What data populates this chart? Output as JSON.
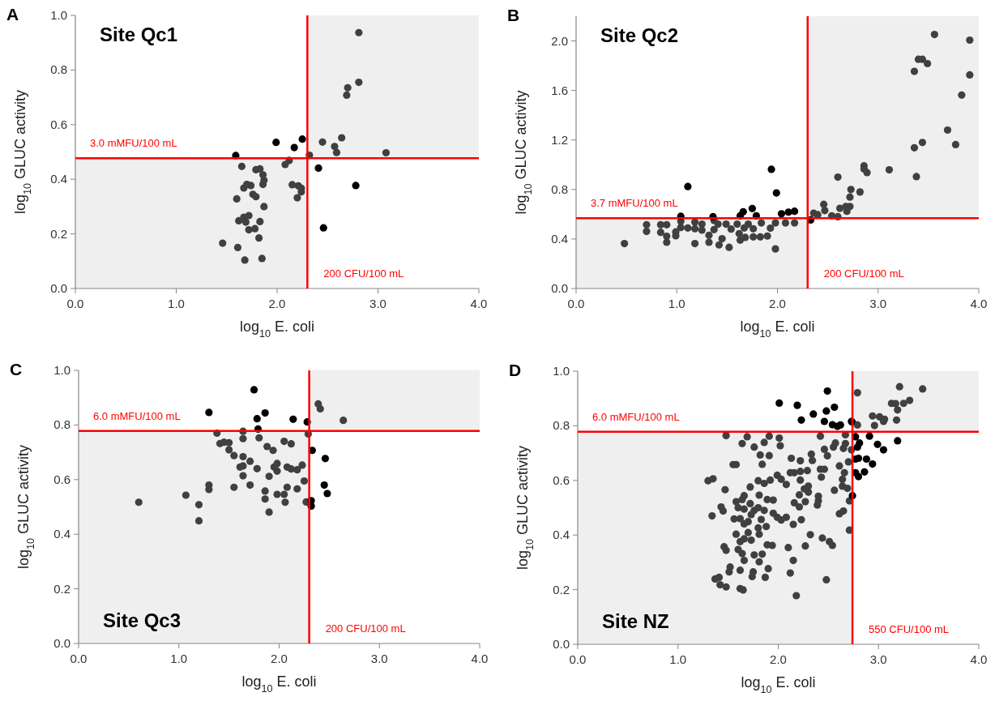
{
  "chart_data": [
    {
      "type": "scatter",
      "title": "A",
      "annotations": [
        "Site Qc1"
      ],
      "xlabel": "log$_{10}$ E. coli",
      "ylabel": "log$_{10}$ GLUC activity",
      "marker": "circle",
      "grid": false,
      "xlim": [
        0,
        4
      ],
      "xticks": [
        {
          "value": 0,
          "label": "0.0"
        },
        {
          "value": 1,
          "label": "1.0"
        },
        {
          "value": 2,
          "label": "2.0"
        },
        {
          "value": 3,
          "label": "3.0"
        },
        {
          "value": 4,
          "label": "4.0"
        }
      ],
      "ylim": [
        0,
        1
      ],
      "yticks": [
        {
          "value": 0,
          "label": "0.0"
        },
        0.2,
        0.4,
        0.6,
        0.8,
        {
          "value": 1,
          "label": "1.0"
        }
      ],
      "ref_lines": [
        {
          "axis": "y",
          "value": 0.477,
          "label": "3.0 mMFU/100 mL",
          "color": "#ff0000"
        },
        {
          "axis": "x",
          "value": 2.3,
          "label": "200 CFU/100 mL",
          "color": "#ff0000"
        }
      ],
      "bands": [
        {
          "axis": "x",
          "from": 0,
          "to": 2.3,
          "color": "#efefef"
        },
        {
          "axis": "x",
          "from": 2.3,
          "to": 4,
          "color": "#efefef"
        }
      ],
      "series": [
        {
          "color": "#404040",
          "x": [
            2.81,
            2.81,
            2.7,
            2.69,
            2.64,
            2.45,
            2.57,
            2.59,
            3.08,
            2.32,
            2.12,
            2.08,
            1.65,
            1.83,
            1.79,
            1.86,
            1.87,
            1.86,
            1.74,
            1.7,
            1.67,
            2.15,
            2.21,
            2.24,
            2.24,
            2.2,
            1.76,
            1.79,
            1.6,
            1.87,
            1.72,
            1.67,
            1.62,
            1.69,
            1.83,
            1.72,
            1.78,
            1.82,
            1.46,
            1.61,
            1.68,
            1.85
          ],
          "values": [
            0.937,
            0.755,
            0.735,
            0.708,
            0.552,
            0.536,
            0.52,
            0.498,
            0.497,
            0.488,
            0.469,
            0.454,
            0.447,
            0.438,
            0.435,
            0.416,
            0.396,
            0.381,
            0.377,
            0.381,
            0.368,
            0.38,
            0.376,
            0.367,
            0.354,
            0.332,
            0.345,
            0.336,
            0.328,
            0.3,
            0.267,
            0.261,
            0.248,
            0.243,
            0.245,
            0.215,
            0.219,
            0.185,
            0.166,
            0.15,
            0.104,
            0.11
          ]
        },
        {
          "color": "#000000",
          "x": [
            1.59,
            1.99,
            2.17,
            2.25,
            2.41,
            2.78,
            2.46
          ],
          "values": [
            0.487,
            0.535,
            0.516,
            0.547,
            0.441,
            0.377,
            0.222
          ]
        }
      ]
    },
    {
      "type": "scatter",
      "title": "B",
      "annotations": [
        "Site Qc2"
      ],
      "xlabel": "log$_{10}$ E. coli",
      "ylabel": "log$_{10}$ GLUC activity",
      "marker": "circle",
      "grid": false,
      "xlim": [
        0,
        4
      ],
      "xticks": [
        {
          "value": 0,
          "label": "0.0"
        },
        {
          "value": 1,
          "label": "1.0"
        },
        {
          "value": 2,
          "label": "2.0"
        },
        {
          "value": 3,
          "label": "3.0"
        },
        {
          "value": 4,
          "label": "4.0"
        }
      ],
      "ylim": [
        0,
        2.2
      ],
      "yticks": [
        {
          "value": 0,
          "label": "0.0"
        },
        0.4,
        0.8,
        1.2,
        1.6,
        {
          "value": 2,
          "label": "2.0"
        }
      ],
      "ref_lines": [
        {
          "axis": "y",
          "value": 0.568,
          "label": "3.7 mMFU/100 mL",
          "color": "#ff0000"
        },
        {
          "axis": "x",
          "value": 2.3,
          "label": "200 CFU/100 mL",
          "color": "#ff0000"
        }
      ],
      "bands": [
        {
          "axis": "x",
          "from": 0,
          "to": 2.3,
          "color": "#efefef"
        },
        {
          "axis": "x",
          "from": 2.3,
          "to": 4,
          "color": "#efefef"
        }
      ],
      "series": [
        {
          "color": "#404040",
          "x": [
            0.48,
            0.7,
            0.7,
            0.84,
            0.9,
            0.84,
            0.9,
            0.9,
            0.99,
            0.99,
            1.04,
            1.04,
            1.11,
            1.18,
            1.18,
            1.18,
            1.25,
            1.25,
            1.32,
            1.32,
            1.37,
            1.37,
            1.41,
            1.42,
            1.45,
            1.49,
            1.52,
            1.54,
            1.6,
            1.62,
            1.63,
            1.67,
            1.68,
            1.71,
            1.76,
            1.76,
            1.84,
            1.83,
            1.9,
            1.93,
            1.98,
            1.98,
            2.08,
            2.17,
            2.36,
            2.4,
            2.46,
            2.47,
            2.54,
            2.6,
            2.62,
            2.68,
            2.69,
            2.72,
            2.72,
            2.73,
            2.82,
            2.6,
            2.86,
            2.86,
            2.89,
            3.11,
            3.38,
            3.36,
            3.44,
            3.69,
            3.77,
            3.36,
            3.4,
            3.44,
            3.49,
            3.56,
            3.91,
            3.91,
            3.83
          ],
          "values": [
            0.363,
            0.515,
            0.461,
            0.515,
            0.515,
            0.454,
            0.422,
            0.374,
            0.457,
            0.426,
            0.543,
            0.493,
            0.489,
            0.537,
            0.483,
            0.363,
            0.52,
            0.472,
            0.43,
            0.374,
            0.55,
            0.476,
            0.52,
            0.352,
            0.402,
            0.52,
            0.333,
            0.48,
            0.52,
            0.443,
            0.391,
            0.489,
            0.413,
            0.52,
            0.417,
            0.483,
            0.53,
            0.417,
            0.424,
            0.487,
            0.53,
            0.32,
            0.53,
            0.53,
            0.609,
            0.596,
            0.68,
            0.63,
            0.587,
            0.58,
            0.648,
            0.663,
            0.624,
            0.663,
            0.739,
            0.8,
            0.78,
            0.9,
            0.991,
            0.965,
            0.937,
            0.959,
            0.904,
            1.137,
            1.18,
            1.28,
            1.163,
            1.754,
            1.852,
            1.852,
            1.817,
            2.052,
            2.007,
            1.726,
            1.563
          ]
        },
        {
          "color": "#000000",
          "x": [
            1.11,
            1.94,
            1.99,
            1.75,
            1.66,
            2.04,
            2.11,
            2.17,
            1.79,
            1.04,
            1.36,
            2.33,
            1.63
          ],
          "values": [
            0.824,
            0.963,
            0.772,
            0.646,
            0.62,
            0.604,
            0.617,
            0.624,
            0.587,
            0.583,
            0.58,
            0.554,
            0.587
          ]
        }
      ]
    },
    {
      "type": "scatter",
      "title": "C",
      "annotations": [
        "Site Qc3"
      ],
      "xlabel": "log$_{10}$ E. coli",
      "ylabel": "log$_{10}$ GLUC activity",
      "marker": "circle",
      "grid": false,
      "xlim": [
        0,
        4
      ],
      "xticks": [
        {
          "value": 0,
          "label": "0.0"
        },
        {
          "value": 1,
          "label": "1.0"
        },
        {
          "value": 2,
          "label": "2.0"
        },
        {
          "value": 3,
          "label": "3.0"
        },
        {
          "value": 4,
          "label": "4.0"
        }
      ],
      "ylim": [
        0,
        1
      ],
      "yticks": [
        {
          "value": 0,
          "label": "0.0"
        },
        0.2,
        0.4,
        0.6,
        0.8,
        {
          "value": 1,
          "label": "1.0"
        }
      ],
      "ref_lines": [
        {
          "axis": "y",
          "value": 0.778,
          "label": "6.0 mMFU/100 mL",
          "color": "#ff0000"
        },
        {
          "axis": "x",
          "value": 2.3,
          "label": "200 CFU/100 mL",
          "color": "#ff0000"
        }
      ],
      "bands": [
        {
          "axis": "x",
          "from": 0,
          "to": 2.3,
          "color": "#efefef"
        },
        {
          "axis": "x",
          "from": 2.3,
          "to": 4,
          "color": "#efefef"
        }
      ],
      "series": [
        {
          "color": "#404040",
          "x": [
            0.6,
            1.07,
            1.2,
            1.2,
            1.3,
            1.3,
            1.38,
            1.41,
            1.45,
            1.5,
            1.5,
            1.55,
            1.55,
            1.64,
            1.64,
            1.64,
            1.61,
            1.64,
            1.64,
            1.71,
            1.71,
            1.78,
            1.8,
            1.88,
            1.94,
            1.86,
            1.86,
            1.9,
            1.9,
            1.95,
            1.98,
            1.98,
            1.98,
            2.05,
            2.06,
            2.05,
            2.12,
            2.08,
            2.12,
            2.18,
            2.23,
            2.08,
            2.18,
            2.25,
            2.27,
            2.29,
            2.39,
            2.41,
            2.64
          ],
          "values": [
            0.517,
            0.543,
            0.508,
            0.449,
            0.58,
            0.564,
            0.77,
            0.732,
            0.737,
            0.735,
            0.709,
            0.688,
            0.572,
            0.777,
            0.75,
            0.684,
            0.646,
            0.65,
            0.614,
            0.667,
            0.58,
            0.64,
            0.753,
            0.721,
            0.707,
            0.558,
            0.529,
            0.612,
            0.481,
            0.646,
            0.659,
            0.631,
            0.546,
            0.546,
            0.517,
            0.74,
            0.731,
            0.646,
            0.639,
            0.636,
            0.653,
            0.572,
            0.566,
            0.595,
            0.518,
            0.767,
            0.877,
            0.859,
            0.817
          ]
        },
        {
          "color": "#000000",
          "x": [
            1.75,
            1.3,
            1.86,
            1.78,
            2.14,
            2.28,
            1.79,
            2.33,
            2.46,
            2.45,
            2.48,
            2.32,
            2.32
          ],
          "values": [
            0.929,
            0.846,
            0.844,
            0.823,
            0.821,
            0.811,
            0.785,
            0.707,
            0.677,
            0.58,
            0.549,
            0.523,
            0.503
          ]
        }
      ]
    },
    {
      "type": "scatter",
      "title": "D",
      "annotations": [
        "Site NZ"
      ],
      "xlabel": "log$_{10}$ E. coli",
      "ylabel": "log$_{10}$ GLUC activity",
      "marker": "circle",
      "grid": false,
      "xlim": [
        0,
        4
      ],
      "xticks": [
        {
          "value": 0,
          "label": "0.0"
        },
        {
          "value": 1,
          "label": "1.0"
        },
        {
          "value": 2,
          "label": "2.0"
        },
        {
          "value": 3,
          "label": "3.0"
        },
        {
          "value": 4,
          "label": "4.0"
        }
      ],
      "ylim": [
        0,
        1
      ],
      "yticks": [
        {
          "value": 0,
          "label": "0.0"
        },
        0.2,
        0.4,
        0.6,
        0.8,
        {
          "value": 1,
          "label": "1.0"
        }
      ],
      "ref_lines": [
        {
          "axis": "y",
          "value": 0.778,
          "label": "6.0 mMFU/100 mL",
          "color": "#ff0000"
        },
        {
          "axis": "x",
          "value": 2.74,
          "label": "550 CFU/100 mL",
          "color": "#ff0000"
        }
      ],
      "bands": [
        {
          "axis": "x",
          "from": 0,
          "to": 2.74,
          "color": "#efefef"
        },
        {
          "axis": "x",
          "from": 2.74,
          "to": 4,
          "color": "#efefef"
        }
      ],
      "series": [
        {
          "color": "#404040",
          "x": [
            1.3,
            1.35,
            1.34,
            1.43,
            1.45,
            1.47,
            1.48,
            1.64,
            1.69,
            1.76,
            1.86,
            1.91,
            2.01,
            2.02,
            1.82,
            1.91,
            1.55,
            1.58,
            1.84,
            1.99,
            2.03,
            2.08,
            1.8,
            1.86,
            1.92,
            1.72,
            1.66,
            1.81,
            1.89,
            1.95,
            1.58,
            1.64,
            1.6,
            1.66,
            1.72,
            1.76,
            1.8,
            1.86,
            1.73,
            1.56,
            1.62,
            1.66,
            1.7,
            1.83,
            1.88,
            1.8,
            1.95,
            1.99,
            2.03,
            2.08,
            2.15,
            2.23,
            2.16,
            2.21,
            2.27,
            2.21,
            2.26,
            2.3,
            2.3,
            2.13,
            2.22,
            2.12,
            2.16,
            2.22,
            2.29,
            2.33,
            2.34,
            2.22,
            2.4,
            2.4,
            2.39,
            2.42,
            2.46,
            2.43,
            2.42,
            2.46,
            2.49,
            2.57,
            2.55,
            2.56,
            2.61,
            2.61,
            2.65,
            2.64,
            2.66,
            2.64,
            2.69,
            2.71,
            2.71,
            2.65,
            2.67,
            2.7,
            2.67,
            2.73,
            1.58,
            1.66,
            1.7,
            1.62,
            1.73,
            1.81,
            1.89,
            1.94,
            1.46,
            1.48,
            1.6,
            1.64,
            1.76,
            1.84,
            1.81,
            1.66,
            1.52,
            1.51,
            1.62,
            1.75,
            1.74,
            1.87,
            1.9,
            1.37,
            1.41,
            1.42,
            1.48,
            1.62,
            1.65,
            2.1,
            2.15,
            2.12,
            2.27,
            2.32,
            2.44,
            2.51,
            2.54,
            2.48,
            2.18,
            2.79,
            2.79,
            2.74,
            2.94,
            2.96,
            3.01,
            3.05,
            3.06,
            3.18,
            3.13,
            3.17,
            3.19,
            3.25,
            3.31,
            3.21,
            3.44
          ],
          "values": [
            0.599,
            0.606,
            0.47,
            0.503,
            0.488,
            0.566,
            0.764,
            0.735,
            0.76,
            0.722,
            0.739,
            0.762,
            0.755,
            0.727,
            0.693,
            0.691,
            0.658,
            0.658,
            0.659,
            0.619,
            0.604,
            0.585,
            0.599,
            0.589,
            0.601,
            0.576,
            0.544,
            0.546,
            0.53,
            0.528,
            0.522,
            0.53,
            0.5,
            0.495,
            0.515,
            0.49,
            0.5,
            0.49,
            0.475,
            0.459,
            0.46,
            0.441,
            0.449,
            0.457,
            0.431,
            0.426,
            0.48,
            0.465,
            0.455,
            0.465,
            0.439,
            0.456,
            0.518,
            0.503,
            0.522,
            0.547,
            0.569,
            0.557,
            0.579,
            0.681,
            0.672,
            0.628,
            0.628,
            0.633,
            0.636,
            0.696,
            0.673,
            0.601,
            0.542,
            0.525,
            0.51,
            0.641,
            0.641,
            0.612,
            0.762,
            0.714,
            0.69,
            0.737,
            0.722,
            0.564,
            0.653,
            0.478,
            0.488,
            0.604,
            0.628,
            0.579,
            0.571,
            0.525,
            0.418,
            0.717,
            0.735,
            0.668,
            0.767,
            0.712,
            0.403,
            0.386,
            0.409,
            0.376,
            0.381,
            0.403,
            0.364,
            0.362,
            0.357,
            0.344,
            0.347,
            0.332,
            0.327,
            0.33,
            0.302,
            0.307,
            0.283,
            0.265,
            0.271,
            0.265,
            0.248,
            0.245,
            0.277,
            0.239,
            0.245,
            0.218,
            0.21,
            0.204,
            0.199,
            0.354,
            0.307,
            0.261,
            0.36,
            0.401,
            0.389,
            0.376,
            0.362,
            0.236,
            0.178,
            0.921,
            0.803,
            0.813,
            0.836,
            0.801,
            0.833,
            0.816,
            0.824,
            0.821,
            0.882,
            0.881,
            0.858,
            0.882,
            0.893,
            0.943,
            0.935
          ]
        },
        {
          "color": "#000000",
          "x": [
            2.01,
            2.19,
            2.49,
            2.23,
            2.35,
            2.48,
            2.56,
            2.46,
            2.54,
            2.59,
            2.62,
            2.73,
            2.77,
            2.81,
            2.79,
            2.91,
            2.99,
            3.05,
            3.19,
            2.8,
            2.77,
            2.88,
            2.94,
            2.86,
            2.77,
            2.8,
            2.74
          ],
          "values": [
            0.883,
            0.875,
            0.927,
            0.821,
            0.843,
            0.854,
            0.868,
            0.816,
            0.804,
            0.798,
            0.803,
            0.816,
            0.76,
            0.737,
            0.722,
            0.762,
            0.732,
            0.712,
            0.745,
            0.681,
            0.678,
            0.678,
            0.66,
            0.631,
            0.628,
            0.614,
            0.544
          ]
        }
      ]
    }
  ]
}
